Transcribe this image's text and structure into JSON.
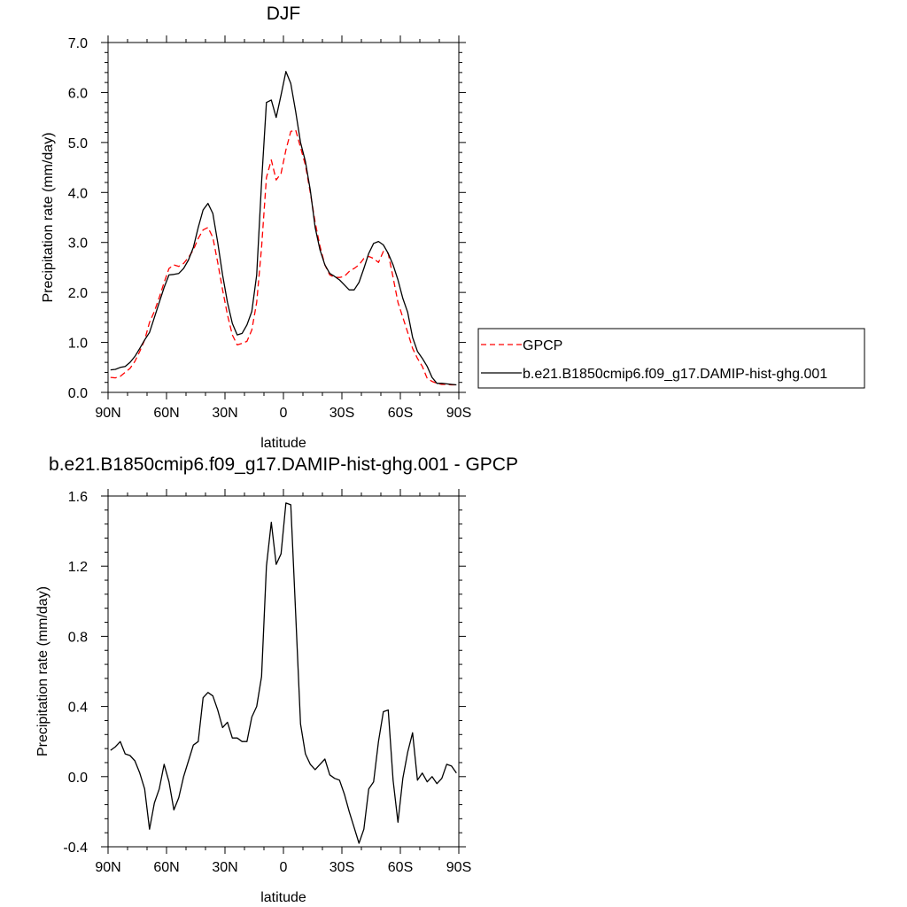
{
  "chart_data": [
    {
      "type": "line",
      "title": "DJF",
      "xlabel": "latitude",
      "ylabel": "Precipitation rate (mm/day)",
      "xlim": [
        90,
        -90
      ],
      "ylim": [
        0.0,
        7.0
      ],
      "xticks": [
        90,
        60,
        30,
        0,
        -30,
        -60,
        -90
      ],
      "xtick_labels": [
        "90N",
        "60N",
        "30N",
        "0",
        "30S",
        "60S",
        "90S"
      ],
      "yticks": [
        0,
        1,
        2,
        3,
        4,
        5,
        6,
        7
      ],
      "ytick_labels": [
        "0.0",
        "1.0",
        "2.0",
        "3.0",
        "4.0",
        "5.0",
        "6.0",
        "7.0"
      ],
      "legend_position": "right",
      "series": [
        {
          "name": "GPCP",
          "color": "#ff0000",
          "style": "dashed",
          "x": [
            88.75,
            86.25,
            83.75,
            81.25,
            78.75,
            76.25,
            73.75,
            71.25,
            68.75,
            66.25,
            63.75,
            61.25,
            58.75,
            56.25,
            53.75,
            51.25,
            48.75,
            46.25,
            43.75,
            41.25,
            38.75,
            36.25,
            33.75,
            31.25,
            28.75,
            26.25,
            23.75,
            21.25,
            18.75,
            16.25,
            13.75,
            11.25,
            8.75,
            6.25,
            3.75,
            1.25,
            -1.25,
            -3.75,
            -6.25,
            -8.75,
            -11.25,
            -13.75,
            -16.25,
            -18.75,
            -21.25,
            -23.75,
            -26.25,
            -28.75,
            -31.25,
            -33.75,
            -36.25,
            -38.75,
            -41.25,
            -43.75,
            -46.25,
            -48.75,
            -51.25,
            -53.75,
            -56.25,
            -58.75,
            -61.25,
            -63.75,
            -66.25,
            -68.75,
            -71.25,
            -73.75,
            -76.25,
            -78.75,
            -81.25,
            -83.75,
            -86.25,
            -88.75
          ],
          "values": [
            0.3,
            0.29,
            0.32,
            0.4,
            0.48,
            0.62,
            0.82,
            1.05,
            1.4,
            1.62,
            1.9,
            2.2,
            2.48,
            2.55,
            2.52,
            2.58,
            2.7,
            2.85,
            3.08,
            3.25,
            3.3,
            3.1,
            2.6,
            2.05,
            1.55,
            1.15,
            0.95,
            0.98,
            1.02,
            1.25,
            1.8,
            2.9,
            4.3,
            4.65,
            4.25,
            4.38,
            4.85,
            5.22,
            5.25,
            4.9,
            4.55,
            4.0,
            3.4,
            2.92,
            2.55,
            2.35,
            2.3,
            2.3,
            2.32,
            2.42,
            2.48,
            2.55,
            2.68,
            2.72,
            2.68,
            2.6,
            2.82,
            2.78,
            2.3,
            1.8,
            1.5,
            1.2,
            0.88,
            0.68,
            0.52,
            0.28,
            0.22,
            0.18,
            0.16,
            0.16,
            0.15,
            0.15
          ]
        },
        {
          "name": "b.e21.B1850cmip6.f09_g17.DAMIP-hist-ghg.001",
          "color": "#000000",
          "style": "solid",
          "x": [
            88.75,
            86.25,
            83.75,
            81.25,
            78.75,
            76.25,
            73.75,
            71.25,
            68.75,
            66.25,
            63.75,
            61.25,
            58.75,
            56.25,
            53.75,
            51.25,
            48.75,
            46.25,
            43.75,
            41.25,
            38.75,
            36.25,
            33.75,
            31.25,
            28.75,
            26.25,
            23.75,
            21.25,
            18.75,
            16.25,
            13.75,
            11.25,
            8.75,
            6.25,
            3.75,
            1.25,
            -1.25,
            -3.75,
            -6.25,
            -8.75,
            -11.25,
            -13.75,
            -16.25,
            -18.75,
            -21.25,
            -23.75,
            -26.25,
            -28.75,
            -31.25,
            -33.75,
            -36.25,
            -38.75,
            -41.25,
            -43.75,
            -46.25,
            -48.75,
            -51.25,
            -53.75,
            -56.25,
            -58.75,
            -61.25,
            -63.75,
            -66.25,
            -68.75,
            -71.25,
            -73.75,
            -76.25,
            -78.75,
            -81.25,
            -83.75,
            -86.25,
            -88.75
          ],
          "values": [
            0.45,
            0.46,
            0.5,
            0.52,
            0.6,
            0.72,
            0.88,
            1.05,
            1.2,
            1.5,
            1.8,
            2.1,
            2.35,
            2.36,
            2.38,
            2.48,
            2.65,
            2.9,
            3.3,
            3.65,
            3.78,
            3.58,
            3.0,
            2.35,
            1.8,
            1.38,
            1.15,
            1.18,
            1.35,
            1.62,
            2.35,
            4.2,
            5.8,
            5.85,
            5.5,
            5.95,
            6.42,
            6.18,
            5.62,
            5.0,
            4.62,
            4.05,
            3.3,
            2.85,
            2.55,
            2.38,
            2.32,
            2.25,
            2.15,
            2.05,
            2.05,
            2.2,
            2.48,
            2.78,
            2.98,
            3.02,
            2.95,
            2.78,
            2.55,
            2.25,
            1.88,
            1.6,
            1.1,
            0.82,
            0.68,
            0.52,
            0.3,
            0.18,
            0.18,
            0.17,
            0.16,
            0.15
          ]
        }
      ]
    },
    {
      "type": "line",
      "title": "b.e21.B1850cmip6.f09_g17.DAMIP-hist-ghg.001 - GPCP",
      "xlabel": "latitude",
      "ylabel": "Precipitation rate (mm/day)",
      "xlim": [
        90,
        -90
      ],
      "ylim": [
        -0.4,
        1.6
      ],
      "xticks": [
        90,
        60,
        30,
        0,
        -30,
        -60,
        -90
      ],
      "xtick_labels": [
        "90N",
        "60N",
        "30N",
        "0",
        "30S",
        "60S",
        "90S"
      ],
      "yticks": [
        -0.4,
        0.0,
        0.4,
        0.8,
        1.2,
        1.6
      ],
      "ytick_labels": [
        "-0.4",
        "0.0",
        "0.4",
        "0.8",
        "1.2",
        "1.6"
      ],
      "series": [
        {
          "color": "#000000",
          "style": "solid",
          "x": [
            88.75,
            86.25,
            83.75,
            81.25,
            78.75,
            76.25,
            73.75,
            71.25,
            68.75,
            66.25,
            63.75,
            61.25,
            58.75,
            56.25,
            53.75,
            51.25,
            48.75,
            46.25,
            43.75,
            41.25,
            38.75,
            36.25,
            33.75,
            31.25,
            28.75,
            26.25,
            23.75,
            21.25,
            18.75,
            16.25,
            13.75,
            11.25,
            8.75,
            6.25,
            3.75,
            1.25,
            -1.25,
            -3.75,
            -6.25,
            -8.75,
            -11.25,
            -13.75,
            -16.25,
            -18.75,
            -21.25,
            -23.75,
            -26.25,
            -28.75,
            -31.25,
            -33.75,
            -36.25,
            -38.75,
            -41.25,
            -43.75,
            -46.25,
            -48.75,
            -51.25,
            -53.75,
            -56.25,
            -58.75,
            -61.25,
            -63.75,
            -66.25,
            -68.75,
            -71.25,
            -73.75,
            -76.25,
            -78.75,
            -81.25,
            -83.75,
            -86.25,
            -88.75
          ],
          "values": [
            0.15,
            0.17,
            0.2,
            0.13,
            0.12,
            0.09,
            0.02,
            -0.07,
            -0.3,
            -0.15,
            -0.07,
            0.07,
            -0.03,
            -0.19,
            -0.12,
            0.0,
            0.09,
            0.18,
            0.2,
            0.45,
            0.48,
            0.46,
            0.38,
            0.28,
            0.31,
            0.22,
            0.22,
            0.2,
            0.2,
            0.34,
            0.4,
            0.57,
            1.2,
            1.45,
            1.21,
            1.27,
            1.56,
            1.55,
            0.93,
            0.3,
            0.13,
            0.07,
            0.04,
            0.07,
            0.1,
            0.01,
            -0.01,
            -0.02,
            -0.1,
            -0.2,
            -0.29,
            -0.38,
            -0.3,
            -0.07,
            -0.03,
            0.2,
            0.37,
            0.38,
            -0.02,
            -0.26,
            -0.01,
            0.14,
            0.25,
            -0.02,
            0.02,
            -0.03,
            0.0,
            -0.04,
            -0.01,
            0.07,
            0.06,
            0.02
          ]
        }
      ]
    }
  ]
}
